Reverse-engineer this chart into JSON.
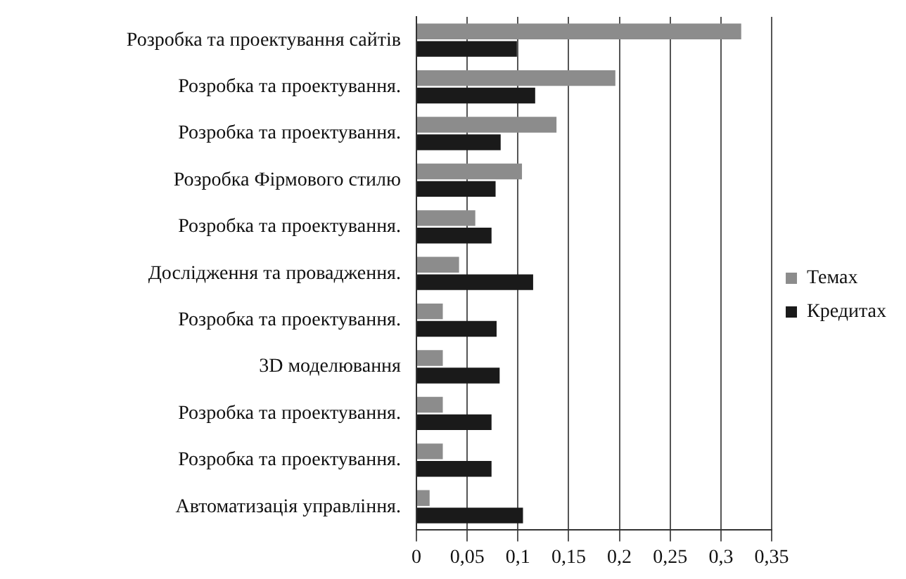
{
  "chart_data": {
    "type": "bar",
    "orientation": "horizontal",
    "categories": [
      "Розробка та проектування сайтів",
      "Розробка та проектування.",
      "Розробка та проектування.",
      "Розробка Фірмового стилю",
      "Розробка та проектування.",
      "Дослідження та провадження.",
      "Розробка та проектування.",
      "3D моделювання",
      "Розробка та проектування.",
      "Розробка та проектування.",
      "Автоматизація управління."
    ],
    "series": [
      {
        "name": "Темах",
        "color": "#8c8c8c",
        "values": [
          0.32,
          0.196,
          0.138,
          0.104,
          0.058,
          0.042,
          0.026,
          0.026,
          0.026,
          0.026,
          0.013
        ]
      },
      {
        "name": "Кредитах",
        "color": "#1a1a1a",
        "values": [
          0.099,
          0.117,
          0.083,
          0.078,
          0.074,
          0.115,
          0.079,
          0.082,
          0.074,
          0.074,
          0.105
        ]
      }
    ],
    "xlim": [
      0,
      0.35
    ],
    "xticks": [
      0,
      {
        "value": 0.05,
        "label": "0,05"
      },
      {
        "value": 0.1,
        "label": "0,1"
      },
      {
        "value": 0.15,
        "label": "0,15"
      },
      {
        "value": 0.2,
        "label": "0,2"
      },
      {
        "value": 0.25,
        "label": "0,25"
      },
      {
        "value": 0.3,
        "label": "0,3"
      },
      {
        "value": 0.35,
        "label": "0,35"
      }
    ],
    "grid": "x",
    "legend": "right"
  }
}
